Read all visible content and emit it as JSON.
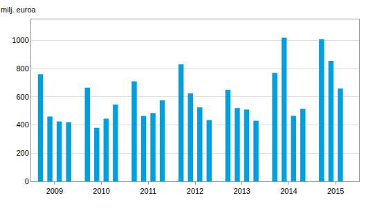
{
  "chart_data": {
    "type": "bar",
    "y_label": "milj. euroa",
    "categories": [
      "2009",
      "2010",
      "2011",
      "2012",
      "2013",
      "2014",
      "2015"
    ],
    "series": [
      {
        "values": [
          760,
          665,
          710,
          830,
          650,
          770,
          1010
        ]
      },
      {
        "values": [
          460,
          380,
          465,
          625,
          520,
          1020,
          855
        ]
      },
      {
        "values": [
          425,
          445,
          485,
          525,
          510,
          465,
          660
        ]
      },
      {
        "values": [
          420,
          545,
          575,
          435,
          430,
          515,
          null
        ]
      }
    ],
    "color": "#009fe0",
    "ylim": [
      0,
      1150
    ],
    "yticks": [
      0,
      200,
      400,
      600,
      800,
      1000
    ],
    "grid": true
  }
}
